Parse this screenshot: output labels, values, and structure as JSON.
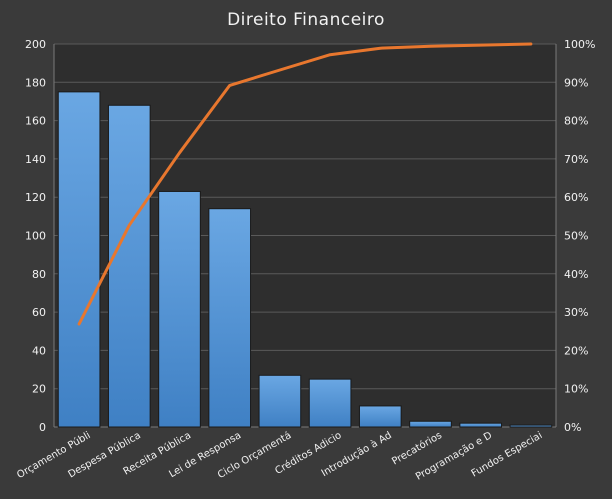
{
  "chart_data": {
    "type": "bar",
    "title": "Direito  Financeiro",
    "categories": [
      "Orçamento Públi",
      "Despesa Pública",
      "Receita Pública",
      "Lei de Responsa",
      "Ciclo Orçamentá",
      "Créditos Adicio",
      "Introdução à Ad",
      "Precatórios",
      "Programação e D",
      "Fundos Especiai"
    ],
    "series": [
      {
        "type": "bar",
        "values": [
          175,
          168,
          123,
          114,
          27,
          25,
          11,
          3,
          2,
          1
        ]
      },
      {
        "type": "line",
        "axis": "right",
        "values": [
          26.9,
          52.7,
          71.6,
          89.2,
          93.2,
          97.2,
          98.9,
          99.4,
          99.7,
          100
        ]
      }
    ],
    "y_left": {
      "min": 0,
      "max": 200,
      "ticks": [
        "0",
        "20",
        "40",
        "60",
        "80",
        "100",
        "120",
        "140",
        "160",
        "180",
        "200"
      ]
    },
    "y_right": {
      "min": 0,
      "max": 100,
      "ticks": [
        "0%",
        "10%",
        "20%",
        "30%",
        "40%",
        "50%",
        "60%",
        "70%",
        "80%",
        "90%",
        "100%"
      ]
    },
    "grid": true,
    "colors": {
      "background": "#3a3a3a",
      "plot": "#2e2e2e",
      "bar": "#4f93d6",
      "line": "#e8772e",
      "grid": "#5a5a5a",
      "text": "#f2f2f2"
    }
  }
}
